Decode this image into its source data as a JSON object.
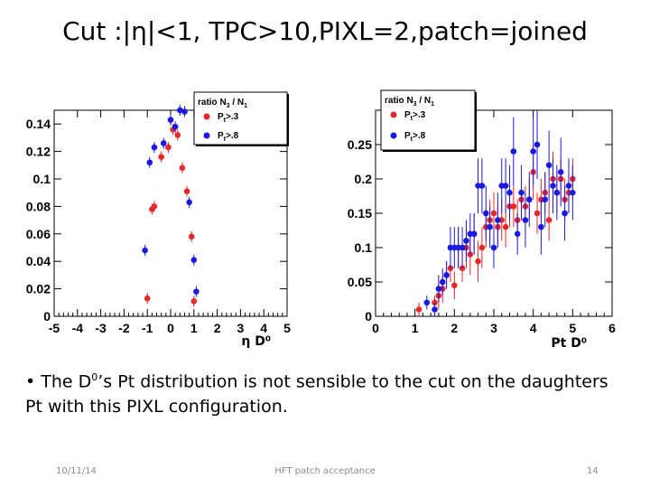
{
  "slide": {
    "title": "Cut :|η|<1, TPC>10,PIXL=2,patch=joined",
    "bullet_prefix": "• The D",
    "bullet_sup": "0",
    "bullet_rest": "’s Pt distribution is not sensible to the cut on the daughters Pt with this PIXL configuration.",
    "footer_date": "10/11/14",
    "footer_center": "HFT patch acceptance",
    "footer_page": "14"
  },
  "colors": {
    "red": "#e8282b",
    "blue": "#1a1ae0",
    "line": "#000000"
  },
  "chart_data": [
    {
      "type": "scatter",
      "title": "",
      "xlabel": "η D⁰",
      "ylabel": "",
      "xlim": [
        -5,
        5
      ],
      "ylim": [
        0,
        0.15
      ],
      "xticks": [
        -5,
        -4,
        -3,
        -2,
        -1,
        0,
        1,
        2,
        3,
        4,
        5
      ],
      "yticks": [
        0,
        0.02,
        0.04,
        0.06,
        0.08,
        0.1,
        0.12,
        0.14
      ],
      "ytick_labels": [
        "0",
        "0.02",
        "0.04",
        "0.06",
        "0.08",
        "0.1",
        "0.12",
        "0.14"
      ],
      "legend": {
        "title": "ratio N3 / N1",
        "title_main": "ratio N",
        "title_sub": "3",
        "title_mid": " / N",
        "title_sub2": "1",
        "placement": "top-right",
        "entries": [
          {
            "main": "P",
            "sub": "t",
            "rest": ">.3"
          },
          {
            "main": "P",
            "sub": "t",
            "rest": ">.8"
          }
        ]
      },
      "series": [
        {
          "name": "Pt>.3",
          "color": "red",
          "x": [
            -1.0,
            -0.8,
            -0.7,
            -0.4,
            -0.1,
            0.1,
            0.3,
            0.5,
            0.7,
            0.9,
            1.0
          ],
          "y": [
            0.013,
            0.078,
            0.08,
            0.116,
            0.123,
            0.136,
            0.132,
            0.108,
            0.091,
            0.058,
            0.011
          ],
          "err": [
            0.004,
            0.004,
            0.004,
            0.004,
            0.004,
            0.004,
            0.004,
            0.004,
            0.004,
            0.004,
            0.004
          ]
        },
        {
          "name": "Pt>.8",
          "color": "blue",
          "x": [
            -1.1,
            -0.9,
            -0.7,
            -0.3,
            0.0,
            0.2,
            0.4,
            0.6,
            0.8,
            1.0,
            1.1
          ],
          "y": [
            0.048,
            0.112,
            0.123,
            0.126,
            0.143,
            0.138,
            0.15,
            0.149,
            0.083,
            0.041,
            0.018
          ],
          "err": [
            0.004,
            0.004,
            0.004,
            0.004,
            0.004,
            0.004,
            0.004,
            0.004,
            0.004,
            0.004,
            0.004
          ]
        }
      ]
    },
    {
      "type": "scatter",
      "title": "",
      "xlabel": "Pt D⁰",
      "ylabel": "",
      "xlim": [
        0,
        6
      ],
      "ylim": [
        0,
        0.3
      ],
      "xticks": [
        0,
        1,
        2,
        3,
        4,
        5,
        6
      ],
      "yticks": [
        0,
        0.05,
        0.1,
        0.15,
        0.2,
        0.25
      ],
      "ytick_labels": [
        "0",
        "0.05",
        "0.1",
        "0.15",
        "0.2",
        "0.25"
      ],
      "legend": {
        "title": "ratio N3 / N1",
        "title_main": "ratio N",
        "title_sub": "3",
        "title_mid": " / N",
        "title_sub2": "1",
        "placement": "top-right",
        "entries": [
          {
            "main": "P",
            "sub": "t",
            "rest": ">.3"
          },
          {
            "main": "P",
            "sub": "t",
            "rest": ">.8"
          }
        ]
      },
      "series": [
        {
          "name": "Pt>.3",
          "color": "red",
          "x": [
            1.1,
            1.5,
            1.6,
            1.7,
            1.8,
            1.9,
            2.0,
            2.1,
            2.2,
            2.3,
            2.4,
            2.5,
            2.6,
            2.7,
            2.8,
            2.9,
            3.0,
            3.1,
            3.2,
            3.3,
            3.4,
            3.5,
            3.6,
            3.7,
            3.8,
            3.9,
            4.0,
            4.1,
            4.2,
            4.3,
            4.4,
            4.5,
            4.6,
            4.7,
            4.8,
            4.9,
            5.0
          ],
          "y": [
            0.01,
            0.02,
            0.03,
            0.04,
            0.06,
            0.07,
            0.045,
            0.1,
            0.07,
            0.1,
            0.09,
            0.12,
            0.08,
            0.1,
            0.13,
            0.14,
            0.15,
            0.13,
            0.14,
            0.13,
            0.16,
            0.16,
            0.14,
            0.17,
            0.16,
            0.17,
            0.21,
            0.15,
            0.17,
            0.18,
            0.14,
            0.2,
            0.18,
            0.2,
            0.17,
            0.18,
            0.2
          ],
          "err": [
            0.01,
            0.01,
            0.02,
            0.02,
            0.02,
            0.02,
            0.02,
            0.03,
            0.02,
            0.03,
            0.03,
            0.03,
            0.03,
            0.03,
            0.03,
            0.03,
            0.03,
            0.03,
            0.03,
            0.03,
            0.03,
            0.03,
            0.03,
            0.03,
            0.03,
            0.03,
            0.04,
            0.03,
            0.03,
            0.03,
            0.03,
            0.04,
            0.03,
            0.03,
            0.03,
            0.03,
            0.03
          ]
        },
        {
          "name": "Pt>.8",
          "color": "blue",
          "x": [
            1.3,
            1.5,
            1.6,
            1.7,
            1.8,
            1.9,
            2.0,
            2.1,
            2.2,
            2.3,
            2.4,
            2.5,
            2.6,
            2.7,
            2.8,
            2.9,
            3.0,
            3.1,
            3.2,
            3.3,
            3.4,
            3.5,
            3.6,
            3.7,
            3.8,
            3.9,
            4.0,
            4.1,
            4.2,
            4.3,
            4.4,
            4.5,
            4.6,
            4.7,
            4.8,
            4.9,
            5.0
          ],
          "y": [
            0.02,
            0.01,
            0.04,
            0.05,
            0.06,
            0.1,
            0.1,
            0.1,
            0.1,
            0.11,
            0.12,
            0.12,
            0.19,
            0.19,
            0.15,
            0.13,
            0.1,
            0.14,
            0.19,
            0.19,
            0.18,
            0.24,
            0.12,
            0.18,
            0.14,
            0.17,
            0.24,
            0.25,
            0.13,
            0.17,
            0.22,
            0.19,
            0.18,
            0.21,
            0.15,
            0.19,
            0.18
          ],
          "err": [
            0.01,
            0.01,
            0.02,
            0.02,
            0.02,
            0.03,
            0.03,
            0.03,
            0.03,
            0.03,
            0.03,
            0.03,
            0.04,
            0.04,
            0.04,
            0.03,
            0.03,
            0.04,
            0.04,
            0.04,
            0.04,
            0.05,
            0.03,
            0.04,
            0.04,
            0.04,
            0.05,
            0.05,
            0.04,
            0.04,
            0.05,
            0.04,
            0.04,
            0.05,
            0.04,
            0.04,
            0.04
          ]
        }
      ]
    }
  ]
}
